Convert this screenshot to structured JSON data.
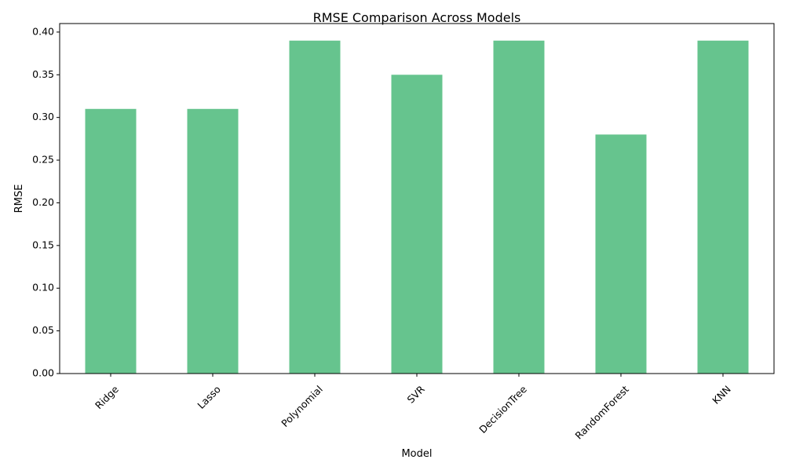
{
  "chart_data": {
    "type": "bar",
    "title": "RMSE Comparison Across Models",
    "xlabel": "Model",
    "ylabel": "RMSE",
    "categories": [
      "Ridge",
      "Lasso",
      "Polynomial",
      "SVR",
      "DecisionTree",
      "RandomForest",
      "KNN"
    ],
    "values": [
      0.31,
      0.31,
      0.39,
      0.35,
      0.39,
      0.28,
      0.39
    ],
    "ylim": [
      0,
      0.41
    ],
    "yticks": [
      0.0,
      0.05,
      0.1,
      0.15,
      0.2,
      0.25,
      0.3,
      0.35,
      0.4
    ],
    "ytick_labels": [
      "0.00",
      "0.05",
      "0.10",
      "0.15",
      "0.20",
      "0.25",
      "0.30",
      "0.35",
      "0.40"
    ],
    "bar_color": "#66c48e",
    "xtick_rotation": "45 degrees",
    "grid": false,
    "legend": "none"
  }
}
